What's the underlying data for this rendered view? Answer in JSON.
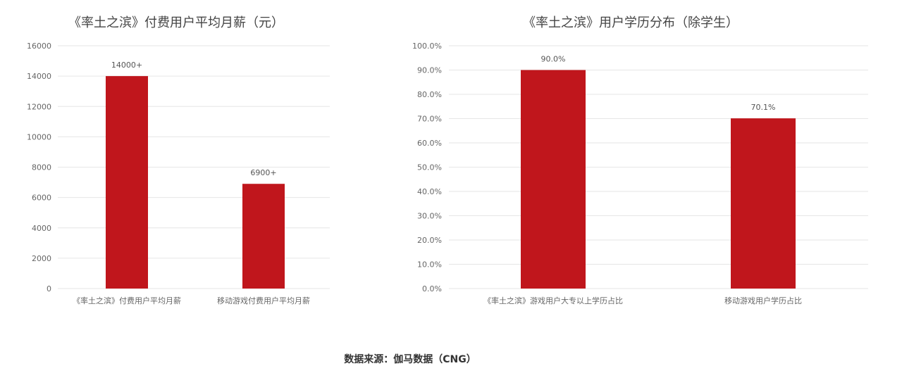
{
  "source_note": "数据来源：伽马数据（CNG）",
  "accent_color": "#c0161c",
  "chart_data": [
    {
      "type": "bar",
      "title": "《率土之滨》付费用户平均月薪（元）",
      "categories": [
        "《率土之滨》付费用户平均月薪",
        "移动游戏付费用户平均月薪"
      ],
      "values": [
        14000,
        6900
      ],
      "data_labels": [
        "14000+",
        "6900+"
      ],
      "ylim": [
        0,
        16000
      ],
      "yticks": [
        0,
        2000,
        4000,
        6000,
        8000,
        10000,
        12000,
        14000,
        16000
      ],
      "ytick_labels": [
        "0",
        "2000",
        "4000",
        "6000",
        "8000",
        "10000",
        "12000",
        "14000",
        "16000"
      ],
      "grid": true,
      "xlabel": "",
      "ylabel": ""
    },
    {
      "type": "bar",
      "title": "《率土之滨》用户学历分布（除学生）",
      "categories": [
        "《率土之滨》游戏用户大专以上学历占比",
        "移动游戏用户学历占比"
      ],
      "values": [
        90.0,
        70.1
      ],
      "data_labels": [
        "90.0%",
        "70.1%"
      ],
      "ylim": [
        0,
        100
      ],
      "yticks": [
        0,
        10,
        20,
        30,
        40,
        50,
        60,
        70,
        80,
        90,
        100
      ],
      "ytick_labels": [
        "0.0%",
        "10.0%",
        "20.0%",
        "30.0%",
        "40.0%",
        "50.0%",
        "60.0%",
        "70.0%",
        "80.0%",
        "90.0%",
        "100.0%"
      ],
      "grid": true,
      "xlabel": "",
      "ylabel": ""
    }
  ]
}
